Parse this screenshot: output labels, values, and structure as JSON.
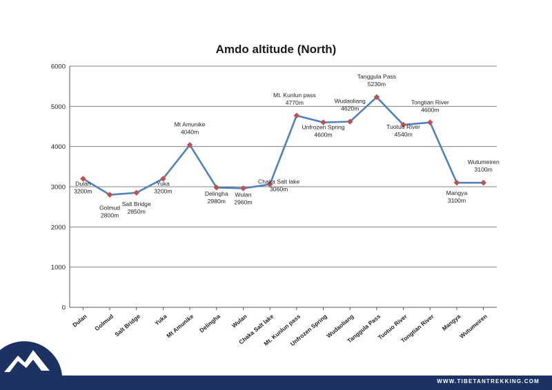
{
  "chart_data": {
    "type": "line",
    "title": "Amdo altitude (North)",
    "categories": [
      "Dulan",
      "Golmud",
      "Salt Bridge",
      "Yuka",
      "Mt Amunike",
      "Delingha",
      "Wulan",
      "Chaka Salt lake",
      "Mt. Kunlun pass",
      "Unfrozen Spring",
      "Wudaoliang",
      "Tanggula Pass",
      "Tuotuo River",
      "Tongtian River",
      "Mangya",
      "Wutumeiren"
    ],
    "values": [
      3200,
      2800,
      2850,
      3200,
      4040,
      2980,
      2960,
      3060,
      4770,
      4600,
      4620,
      5230,
      4540,
      4600,
      3100,
      3100
    ],
    "data_labels": [
      [
        "Dulan",
        "3200m"
      ],
      [
        "Golmud",
        "2800m"
      ],
      [
        "Salt Bridge",
        "2850m"
      ],
      [
        "Yuka",
        "3200m"
      ],
      [
        "Mt Amunike",
        "4040m"
      ],
      [
        "Delingha",
        "2980m"
      ],
      [
        "Wulan",
        "2960m"
      ],
      [
        "Chaka Salt lake",
        "3060m"
      ],
      [
        "Mt. Kunlun pass",
        "4770m"
      ],
      [
        "Unfrozen Spring",
        "4600m"
      ],
      [
        "Wudaoliang",
        "4620m"
      ],
      [
        "Tanggula Pass",
        "5230m"
      ],
      [
        "Tuotuo River",
        "4540m"
      ],
      [
        "Tongtian River",
        "4600m"
      ],
      [
        "Mangya",
        "3100m"
      ],
      [
        "Wutumeiren",
        "3100m"
      ]
    ],
    "yticks": [
      0,
      1000,
      2000,
      3000,
      4000,
      5000,
      6000
    ],
    "ylim": [
      0,
      6000
    ],
    "grid": true,
    "line_color": "#4f81bd",
    "marker_color": "#c0504d"
  },
  "footer": {
    "url": "WWW.TIBETANTREKKING.COM",
    "color": "#1b3263"
  }
}
